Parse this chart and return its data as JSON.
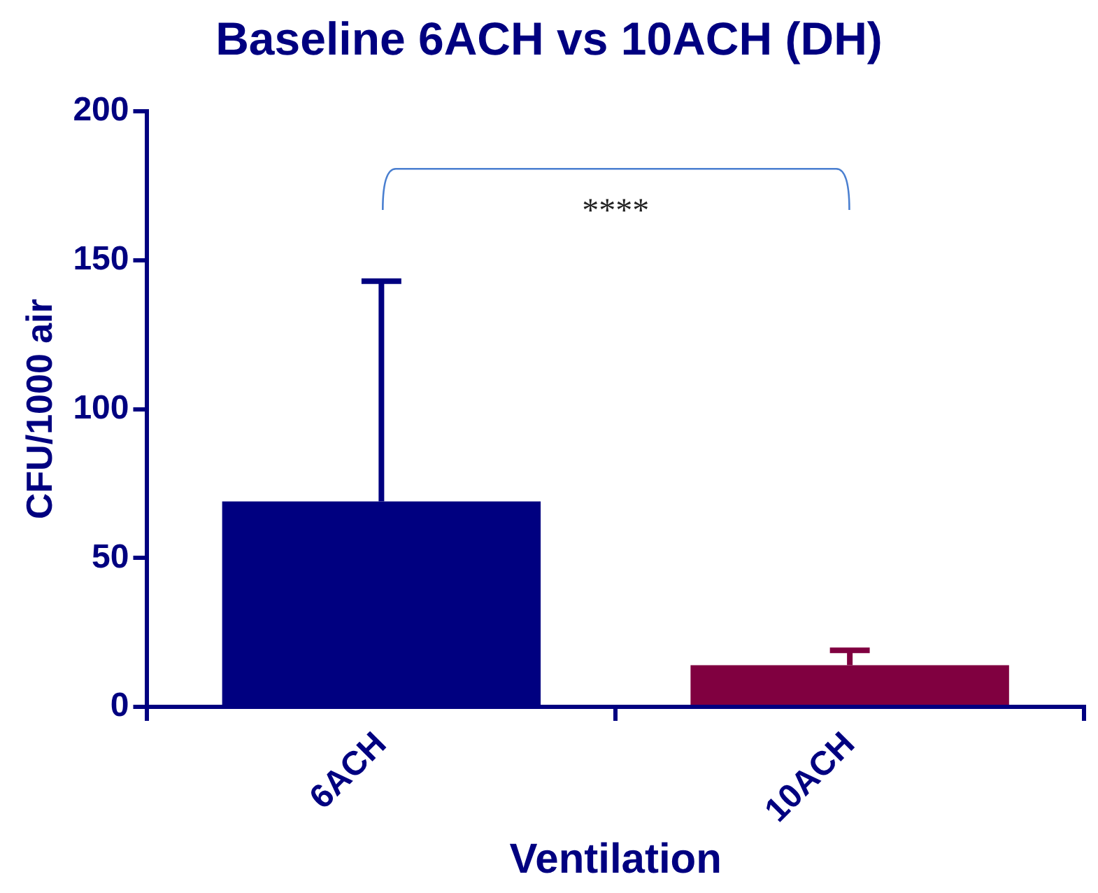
{
  "chart_data": {
    "type": "bar",
    "title": "Baseline 6ACH vs 10ACH (DH)",
    "xlabel": "Ventilation",
    "ylabel": "CFU/1000 air",
    "categories": [
      "6ACH",
      "10ACH"
    ],
    "values": [
      69,
      14
    ],
    "colors": [
      "#000080",
      "#800040"
    ],
    "errors": [
      [
        69,
        143
      ],
      [
        14,
        19
      ]
    ],
    "ylim": [
      0,
      200
    ],
    "yticks": [
      0,
      50,
      100,
      150,
      200
    ],
    "grid": false,
    "legend": false,
    "annotations": [
      "****"
    ]
  }
}
